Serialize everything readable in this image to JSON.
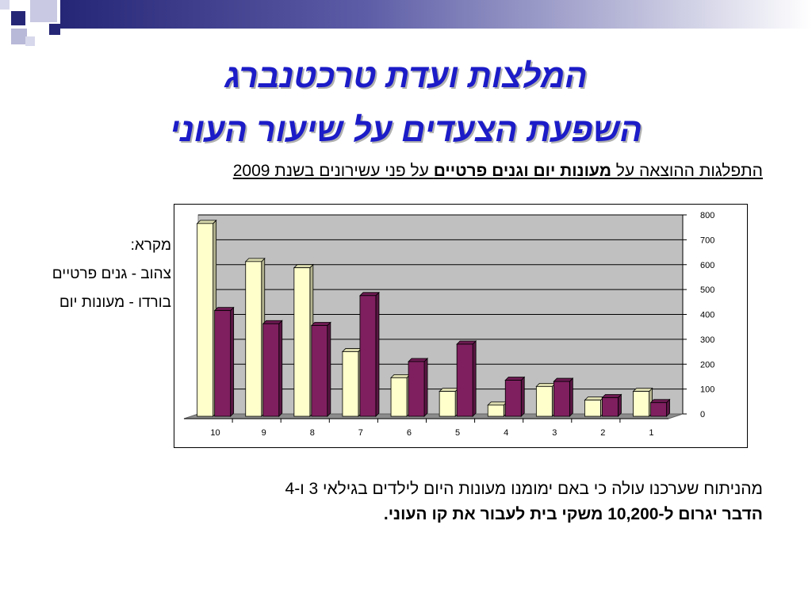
{
  "slide": {
    "title_line1": "המלצות ועדת טרכטנברג",
    "title_line2": "השפעת הצעדים על שיעור העוני",
    "subtitle_part1": "התפלגות ההוצאה על ",
    "subtitle_bold": "מעונות יום וגנים פרטיים",
    "subtitle_part2": " על פני עשירונים בשנת 2009",
    "legend_title": "מקרא:",
    "legend_yellow": "צהוב - גנים פרטיים",
    "legend_burgundy": "בורדו - מעונות יום",
    "footer_line1": "מהניתוח שערכנו עולה כי באם ימומנו מעונות היום לילדים בגילאי 3 ו-4",
    "footer_line2": "הדבר יגרום ל-10,200 משקי בית לעבור את קו העוני."
  },
  "colors": {
    "title": "#1c1cc8",
    "yellow_series": "#ffffcc",
    "burgundy_series": "#7f1f5f",
    "plot_background": "#c0c0c0",
    "deco_navy": "#262677"
  },
  "chart_data": {
    "type": "bar",
    "categories": [
      "10",
      "9",
      "8",
      "7",
      "6",
      "5",
      "4",
      "3",
      "2",
      "1"
    ],
    "series": [
      {
        "color": "#ffffcc",
        "values": [
          775,
          622,
          597,
          260,
          155,
          100,
          45,
          120,
          65,
          100
        ]
      },
      {
        "color": "#7f1f5f",
        "values": [
          425,
          372,
          365,
          485,
          220,
          290,
          145,
          140,
          75,
          55
        ]
      }
    ],
    "ylim": [
      0,
      800
    ],
    "yticks": [
      0,
      100,
      200,
      300,
      400,
      500,
      600,
      700,
      800
    ],
    "y_axis_side": "right",
    "grid": true,
    "style": "3d"
  }
}
